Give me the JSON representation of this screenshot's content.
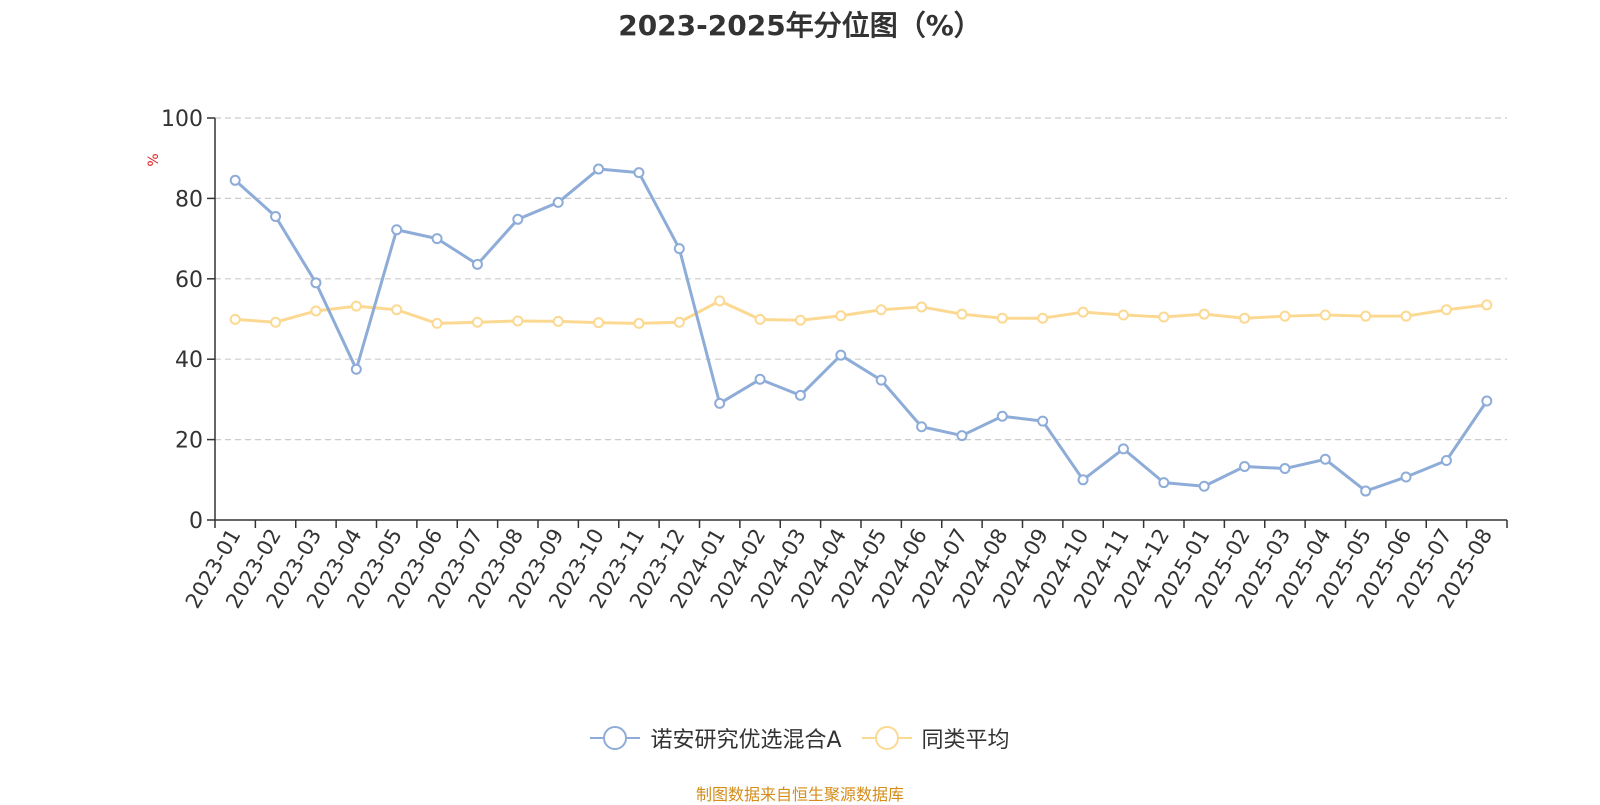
{
  "chart_data": {
    "type": "line",
    "title": "2023-2025年分位图（%）",
    "ylabel": "%",
    "xlabel": "",
    "ylim": [
      0,
      100
    ],
    "yticks": [
      0,
      20,
      40,
      60,
      80,
      100
    ],
    "grid": true,
    "legend_position": "bottom",
    "categories": [
      "2023-01",
      "2023-02",
      "2023-03",
      "2023-04",
      "2023-05",
      "2023-06",
      "2023-07",
      "2023-08",
      "2023-09",
      "2023-10",
      "2023-11",
      "2023-12",
      "2024-01",
      "2024-02",
      "2024-03",
      "2024-04",
      "2024-05",
      "2024-06",
      "2024-07",
      "2024-08",
      "2024-09",
      "2024-10",
      "2024-11",
      "2024-12",
      "2025-01",
      "2025-02",
      "2025-03",
      "2025-04",
      "2025-05",
      "2025-06",
      "2025-07",
      "2025-08"
    ],
    "series": [
      {
        "name": "诺安研究优选混合A",
        "color": "#8eacd8",
        "values": [
          84.5,
          75.5,
          59.0,
          37.5,
          72.2,
          70.0,
          63.6,
          74.8,
          79.0,
          87.3,
          86.4,
          67.5,
          29.0,
          35.0,
          31.0,
          41.0,
          34.8,
          23.2,
          21.0,
          25.8,
          24.6,
          10.0,
          17.7,
          9.3,
          8.4,
          13.3,
          12.8,
          15.1,
          7.2,
          10.7,
          14.8,
          29.6
        ]
      },
      {
        "name": "同类平均",
        "color": "#fcd993",
        "values": [
          49.9,
          49.2,
          52.0,
          53.2,
          52.3,
          48.9,
          49.2,
          49.5,
          49.4,
          49.1,
          48.9,
          49.2,
          54.5,
          49.9,
          49.7,
          50.8,
          52.3,
          53.0,
          51.2,
          50.2,
          50.2,
          51.7,
          51.0,
          50.5,
          51.2,
          50.2,
          50.7,
          51.0,
          50.7,
          50.7,
          52.3,
          53.5
        ]
      }
    ]
  },
  "source_note": "制图数据来自恒生聚源数据库",
  "colors": {
    "axis": "#333333",
    "grid": "#cccccc",
    "ylabel": "#e02020",
    "source": "#d48c1a"
  }
}
